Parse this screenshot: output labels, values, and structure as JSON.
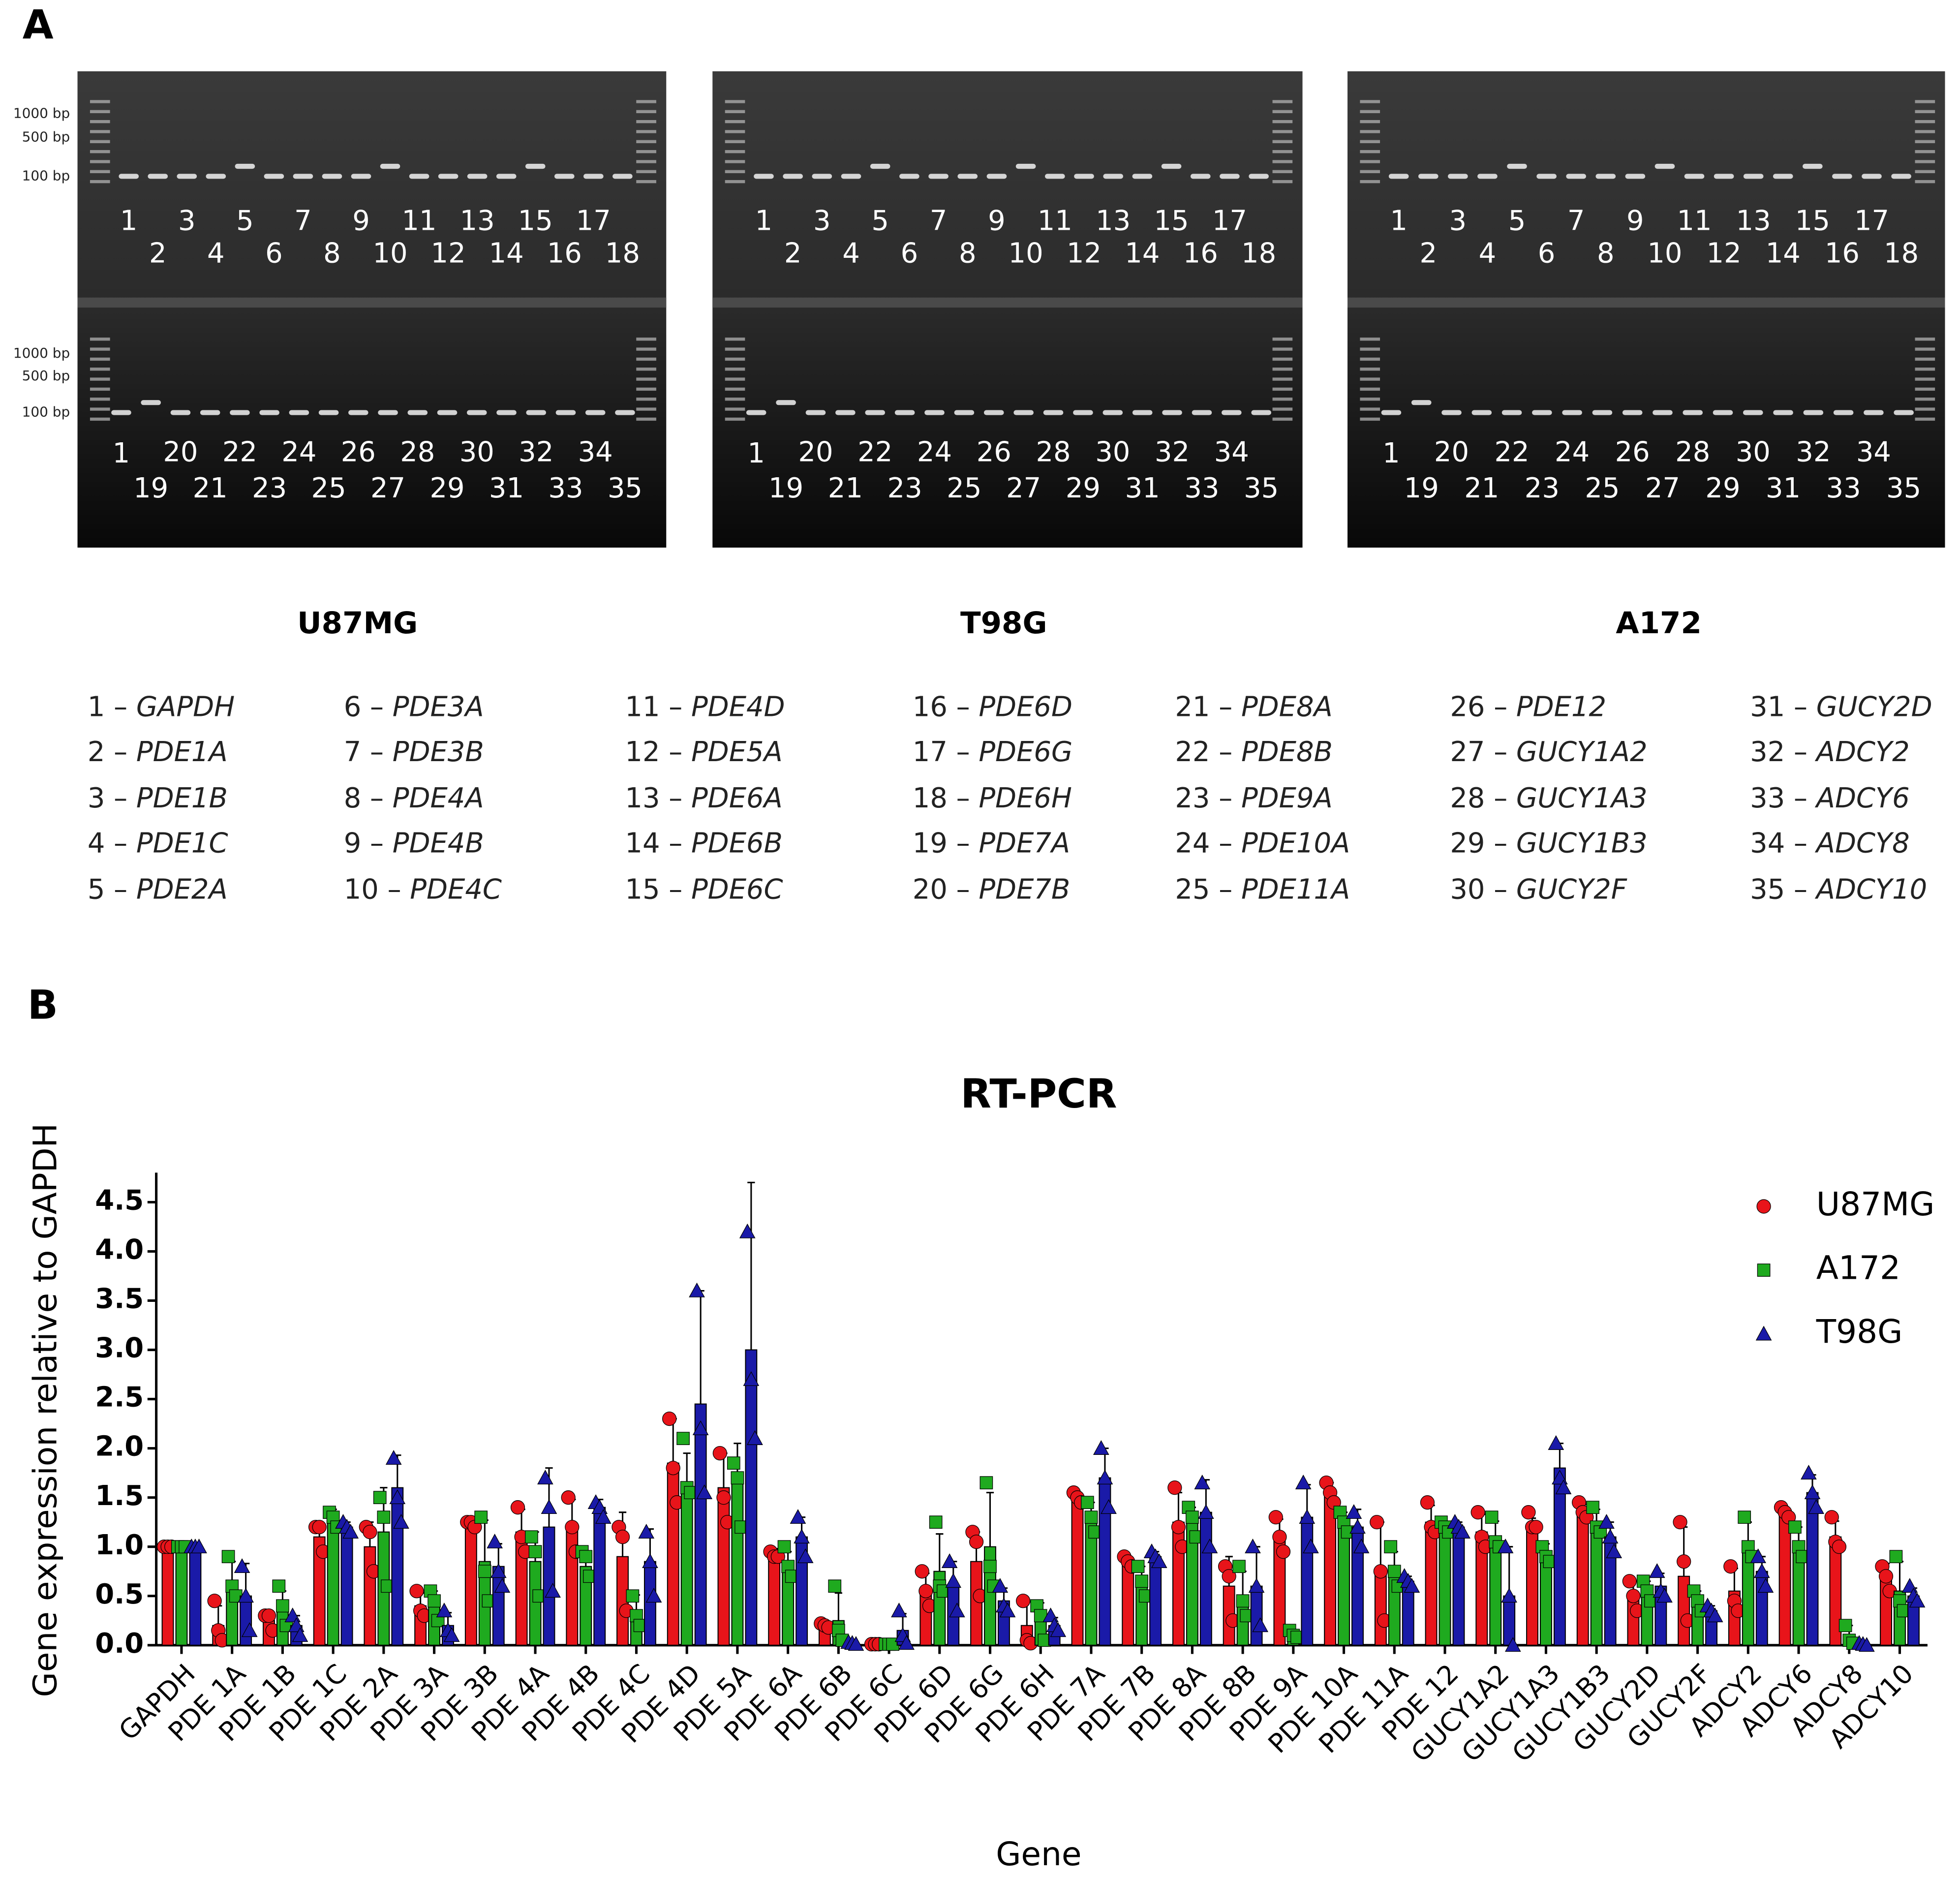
{
  "panels": {
    "a": "A",
    "b": "B"
  },
  "gels": [
    {
      "name": "U87MG",
      "ladder": [
        "1000 bp",
        "500 bp",
        "100 bp"
      ],
      "top": [
        "1",
        "2",
        "3",
        "4",
        "5",
        "6",
        "7",
        "8",
        "9",
        "10",
        "11",
        "12",
        "13",
        "14",
        "15",
        "16",
        "17",
        "18"
      ],
      "bottom": [
        "1",
        "19",
        "20",
        "21",
        "22",
        "23",
        "24",
        "25",
        "26",
        "27",
        "28",
        "29",
        "30",
        "31",
        "32",
        "33",
        "34",
        "35"
      ]
    },
    {
      "name": "T98G",
      "top": [
        "1",
        "2",
        "3",
        "4",
        "5",
        "6",
        "7",
        "8",
        "9",
        "10",
        "11",
        "12",
        "13",
        "14",
        "15",
        "16",
        "17",
        "18"
      ],
      "bottom": [
        "1",
        "19",
        "20",
        "21",
        "22",
        "23",
        "24",
        "25",
        "26",
        "27",
        "28",
        "29",
        "30",
        "31",
        "32",
        "33",
        "34",
        "35"
      ]
    },
    {
      "name": "A172",
      "top": [
        "1",
        "2",
        "3",
        "4",
        "5",
        "6",
        "7",
        "8",
        "9",
        "10",
        "11",
        "12",
        "13",
        "14",
        "15",
        "16",
        "17",
        "18"
      ],
      "bottom": [
        "1",
        "19",
        "20",
        "21",
        "22",
        "23",
        "24",
        "25",
        "26",
        "27",
        "28",
        "29",
        "30",
        "31",
        "32",
        "33",
        "34",
        "35"
      ]
    }
  ],
  "key": {
    "sep": "–",
    "items": [
      {
        "num": "1",
        "gene": "GAPDH"
      },
      {
        "num": "2",
        "gene": "PDE1A"
      },
      {
        "num": "3",
        "gene": "PDE1B"
      },
      {
        "num": "4",
        "gene": "PDE1C"
      },
      {
        "num": "5",
        "gene": "PDE2A"
      },
      {
        "num": "6",
        "gene": "PDE3A"
      },
      {
        "num": "7",
        "gene": "PDE3B"
      },
      {
        "num": "8",
        "gene": "PDE4A"
      },
      {
        "num": "9",
        "gene": "PDE4B"
      },
      {
        "num": "10",
        "gene": "PDE4C"
      },
      {
        "num": "11",
        "gene": "PDE4D"
      },
      {
        "num": "12",
        "gene": "PDE5A"
      },
      {
        "num": "13",
        "gene": "PDE6A"
      },
      {
        "num": "14",
        "gene": "PDE6B"
      },
      {
        "num": "15",
        "gene": "PDE6C"
      },
      {
        "num": "16",
        "gene": "PDE6D"
      },
      {
        "num": "17",
        "gene": "PDE6G"
      },
      {
        "num": "18",
        "gene": "PDE6H"
      },
      {
        "num": "19",
        "gene": "PDE7A"
      },
      {
        "num": "20",
        "gene": "PDE7B"
      },
      {
        "num": "21",
        "gene": "PDE8A"
      },
      {
        "num": "22",
        "gene": "PDE8B"
      },
      {
        "num": "23",
        "gene": "PDE9A"
      },
      {
        "num": "24",
        "gene": "PDE10A"
      },
      {
        "num": "25",
        "gene": "PDE11A"
      },
      {
        "num": "26",
        "gene": "PDE12"
      },
      {
        "num": "27",
        "gene": "GUCY1A2"
      },
      {
        "num": "28",
        "gene": "GUCY1A3"
      },
      {
        "num": "29",
        "gene": "GUCY1B3"
      },
      {
        "num": "30",
        "gene": "GUCY2F"
      },
      {
        "num": "31",
        "gene": "GUCY2D"
      },
      {
        "num": "32",
        "gene": "ADCY2"
      },
      {
        "num": "33",
        "gene": "ADCY6"
      },
      {
        "num": "34",
        "gene": "ADCY8"
      },
      {
        "num": "35",
        "gene": "ADCY10"
      }
    ]
  },
  "chart_data": {
    "type": "bar",
    "title": "RT-PCR",
    "x_label": "Gene",
    "y_label": "Gene expression relative to GAPDH",
    "categories": [
      "GAPDH",
      "PDE 1A",
      "PDE 1B",
      "PDE 1C",
      "PDE 2A",
      "PDE 3A",
      "PDE 3B",
      "PDE 4A",
      "PDE 4B",
      "PDE 4C",
      "PDE 4D",
      "PDE 5A",
      "PDE 6A",
      "PDE 6B",
      "PDE 6C",
      "PDE 6D",
      "PDE 6G",
      "PDE 6H",
      "PDE 7A",
      "PDE 7B",
      "PDE 8A",
      "PDE 8B",
      "PDE 9A",
      "PDE 10A",
      "PDE 11A",
      "PDE 12",
      "GUCY1A2",
      "GUCY1A3",
      "GUCY1B3",
      "GUCY2D",
      "GUCY2F",
      "ADCY2",
      "ADCY6",
      "ADCY8",
      "ADCY10"
    ],
    "ylim": [
      0,
      4.8
    ],
    "yticks": [
      {
        "value": 0,
        "label": "0.0"
      },
      {
        "value": 0.5,
        "label": "0.5"
      },
      {
        "value": 1,
        "label": "1.0"
      },
      {
        "value": 1.5,
        "label": "1.5"
      },
      {
        "value": 2,
        "label": "2.0"
      },
      {
        "value": 2.5,
        "label": "2.5"
      },
      {
        "value": 3,
        "label": "3.0"
      },
      {
        "value": 3.5,
        "label": "3.5"
      },
      {
        "value": 4,
        "label": "4.0"
      },
      {
        "value": 4.5,
        "label": "4.5"
      }
    ],
    "legend": "upper right",
    "series": [
      {
        "name": "U87MG",
        "color": "#e8141a",
        "marker": "circle",
        "values": [
          1,
          0.2,
          0.25,
          1.1,
          1.0,
          0.4,
          1.2,
          1.15,
          1.2,
          0.9,
          1.85,
          1.6,
          0.95,
          0.2,
          0.01,
          0.55,
          0.85,
          0.2,
          1.5,
          0.85,
          1.25,
          0.6,
          1.1,
          1.55,
          0.75,
          1.25,
          1.15,
          1.2,
          1.35,
          0.5,
          0.7,
          0.55,
          1.35,
          1.1,
          0.7
        ],
        "errors": [
          0,
          0.2,
          0.08,
          0.15,
          0.25,
          0.13,
          0.03,
          0.23,
          0.28,
          0.45,
          0.45,
          0.35,
          0.03,
          0.02,
          0,
          0.18,
          0.3,
          0.24,
          0.05,
          0.05,
          0.3,
          0.3,
          0.18,
          0.1,
          0.5,
          0.17,
          0.18,
          0.09,
          0.08,
          0.15,
          0.5,
          0.23,
          0.05,
          0.16,
          0.13
        ],
        "points": [
          [
            1,
            1,
            1
          ],
          [
            0.45,
            0.15,
            0.05
          ],
          [
            0.3,
            0.3,
            0.15
          ],
          [
            1.2,
            1.2,
            0.95
          ],
          [
            1.2,
            1.15,
            0.75
          ],
          [
            0.55,
            0.35,
            0.3
          ],
          [
            1.25,
            1.25,
            1.2
          ],
          [
            1.4,
            1.1,
            0.95
          ],
          [
            1.5,
            1.2,
            0.95
          ],
          [
            1.2,
            1.1,
            0.35
          ],
          [
            2.3,
            1.8,
            1.45
          ],
          [
            1.95,
            1.5,
            1.25
          ],
          [
            0.95,
            0.9,
            0.9
          ],
          [
            0.22,
            0.2,
            0.18
          ],
          [
            0.01,
            0.01,
            0.01
          ],
          [
            0.75,
            0.55,
            0.4
          ],
          [
            1.15,
            1.05,
            0.5
          ],
          [
            0.45,
            0.05,
            0.02
          ],
          [
            1.55,
            1.5,
            1.45
          ],
          [
            0.9,
            0.85,
            0.8
          ],
          [
            1.6,
            1.2,
            1.0
          ],
          [
            0.8,
            0.7,
            0.25
          ],
          [
            1.3,
            1.1,
            0.95
          ],
          [
            1.65,
            1.55,
            1.45
          ],
          [
            1.25,
            0.75,
            0.25
          ],
          [
            1.45,
            1.2,
            1.15
          ],
          [
            1.35,
            1.1,
            1.0
          ],
          [
            1.35,
            1.2,
            1.2
          ],
          [
            1.45,
            1.35,
            1.3
          ],
          [
            0.65,
            0.5,
            0.35
          ],
          [
            1.25,
            0.85,
            0.25
          ],
          [
            0.8,
            0.45,
            0.35
          ],
          [
            1.4,
            1.35,
            1.3
          ],
          [
            1.3,
            1.05,
            1.0
          ],
          [
            0.8,
            0.7,
            0.55
          ]
        ]
      },
      {
        "name": "A172",
        "color": "#1faa1f",
        "marker": "square",
        "values": [
          1,
          0.65,
          0.35,
          1.3,
          1.15,
          0.4,
          0.85,
          0.85,
          0.8,
          0.35,
          1.65,
          1.7,
          0.8,
          0.25,
          0.01,
          0.75,
          1.0,
          0.25,
          1.3,
          0.65,
          1.25,
          0.5,
          0.1,
          1.25,
          0.75,
          1.2,
          1.1,
          0.95,
          1.25,
          0.55,
          0.45,
          1.05,
          1.05,
          0.1,
          0.55
        ],
        "errors": [
          0,
          0.2,
          0.2,
          0.08,
          0.45,
          0.15,
          0.42,
          0.3,
          0.13,
          0.16,
          0.3,
          0.35,
          0.15,
          0.28,
          0,
          0.38,
          0.55,
          0.18,
          0.15,
          0.15,
          0.15,
          0.25,
          0.04,
          0.1,
          0.2,
          0.05,
          0.16,
          0.08,
          0.13,
          0.1,
          0.1,
          0.2,
          0.15,
          0.1,
          0.3
        ],
        "points": [
          [
            1,
            1,
            1
          ],
          [
            0.9,
            0.6,
            0.5
          ],
          [
            0.6,
            0.4,
            0.2
          ],
          [
            1.35,
            1.3,
            1.2
          ],
          [
            1.5,
            1.3,
            0.6
          ],
          [
            0.55,
            0.45,
            0.25
          ],
          [
            1.3,
            0.75,
            0.45
          ],
          [
            1.1,
            0.95,
            0.5
          ],
          [
            0.95,
            0.9,
            0.7
          ],
          [
            0.5,
            0.3,
            0.2
          ],
          [
            2.1,
            1.6,
            1.55
          ],
          [
            1.85,
            1.7,
            1.2
          ],
          [
            1.0,
            0.8,
            0.7
          ],
          [
            0.6,
            0.15,
            0.05
          ],
          [
            0.01,
            0.01,
            0.01
          ],
          [
            1.25,
            0.6,
            0.55
          ],
          [
            1.65,
            0.8,
            0.6
          ],
          [
            0.4,
            0.3,
            0.05
          ],
          [
            1.45,
            1.3,
            1.15
          ],
          [
            0.8,
            0.65,
            0.5
          ],
          [
            1.4,
            1.3,
            1.1
          ],
          [
            0.8,
            0.45,
            0.3
          ],
          [
            0.15,
            0.1,
            0.08
          ],
          [
            1.35,
            1.25,
            1.15
          ],
          [
            1.0,
            0.75,
            0.6
          ],
          [
            1.25,
            1.2,
            1.15
          ],
          [
            1.3,
            1.05,
            1.0
          ],
          [
            1.0,
            0.9,
            0.85
          ],
          [
            1.4,
            1.2,
            1.15
          ],
          [
            0.65,
            0.55,
            0.45
          ],
          [
            0.55,
            0.45,
            0.35
          ],
          [
            1.3,
            1.0,
            0.9
          ],
          [
            1.2,
            1.0,
            0.9
          ],
          [
            0.2,
            0.05,
            0.02
          ],
          [
            0.9,
            0.45,
            0.35
          ]
        ]
      },
      {
        "name": "T98G",
        "color": "#1a1aa8",
        "marker": "triangle",
        "values": [
          1,
          0.5,
          0.2,
          1.2,
          1.6,
          0.2,
          0.8,
          1.2,
          1.4,
          0.85,
          2.45,
          3.0,
          1.1,
          0.02,
          0.15,
          0.6,
          0.45,
          0.2,
          1.7,
          0.9,
          1.35,
          0.6,
          1.3,
          1.2,
          0.65,
          1.2,
          0.5,
          1.8,
          1.1,
          0.6,
          0.35,
          0.75,
          1.55,
          0.01,
          0.5
        ],
        "errors": [
          0,
          0.33,
          0.1,
          0.05,
          0.33,
          0.13,
          0.23,
          0.6,
          0.08,
          0.33,
          1.15,
          1.7,
          0.2,
          0.01,
          0.17,
          0.25,
          0.13,
          0.08,
          0.3,
          0.05,
          0.33,
          0.4,
          0.33,
          0.18,
          0.05,
          0.05,
          0.5,
          0.25,
          0.15,
          0.13,
          0.05,
          0.15,
          0.18,
          0.01,
          0.08
        ],
        "points": [
          [
            1,
            1,
            1
          ],
          [
            0.8,
            0.5,
            0.15
          ],
          [
            0.3,
            0.2,
            0.1
          ],
          [
            1.25,
            1.2,
            1.15
          ],
          [
            1.9,
            1.5,
            1.25
          ],
          [
            0.35,
            0.15,
            0.1
          ],
          [
            1.05,
            0.75,
            0.6
          ],
          [
            1.7,
            1.4,
            0.55
          ],
          [
            1.45,
            1.4,
            1.3
          ],
          [
            1.15,
            0.85,
            0.5
          ],
          [
            3.6,
            2.2,
            1.55
          ],
          [
            4.2,
            2.7,
            2.1
          ],
          [
            1.3,
            1.1,
            0.9
          ],
          [
            0.03,
            0.02,
            0.01
          ],
          [
            0.35,
            0.1,
            0.02
          ],
          [
            0.85,
            0.65,
            0.35
          ],
          [
            0.6,
            0.4,
            0.35
          ],
          [
            0.3,
            0.2,
            0.15
          ],
          [
            2.0,
            1.7,
            1.4
          ],
          [
            0.95,
            0.9,
            0.85
          ],
          [
            1.65,
            1.35,
            1.0
          ],
          [
            1.0,
            0.6,
            0.2
          ],
          [
            1.65,
            1.3,
            1.0
          ],
          [
            1.35,
            1.2,
            1.0
          ],
          [
            0.7,
            0.65,
            0.6
          ],
          [
            1.25,
            1.2,
            1.15
          ],
          [
            1.0,
            0.5,
            0.0
          ],
          [
            2.05,
            1.7,
            1.6
          ],
          [
            1.25,
            1.1,
            0.95
          ],
          [
            0.75,
            0.55,
            0.5
          ],
          [
            0.4,
            0.35,
            0.3
          ],
          [
            0.9,
            0.75,
            0.6
          ],
          [
            1.75,
            1.55,
            1.4
          ],
          [
            0.02,
            0.01,
            0.0
          ],
          [
            0.6,
            0.5,
            0.45
          ]
        ]
      }
    ]
  }
}
